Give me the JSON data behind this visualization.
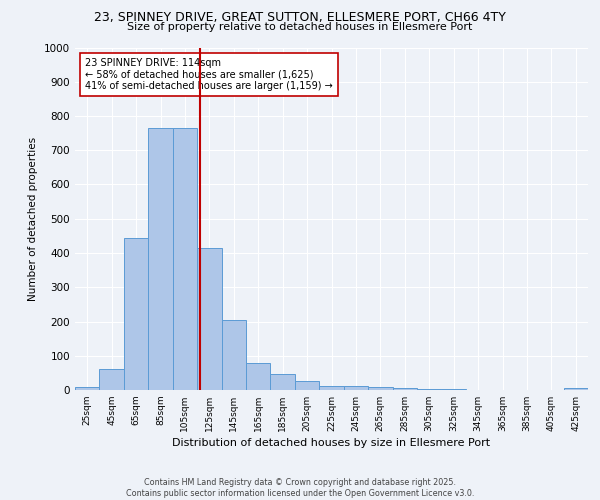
{
  "title_line1": "23, SPINNEY DRIVE, GREAT SUTTON, ELLESMERE PORT, CH66 4TY",
  "title_line2": "Size of property relative to detached houses in Ellesmere Port",
  "xlabel": "Distribution of detached houses by size in Ellesmere Port",
  "ylabel": "Number of detached properties",
  "bin_labels": [
    "25sqm",
    "45sqm",
    "65sqm",
    "85sqm",
    "105sqm",
    "125sqm",
    "145sqm",
    "165sqm",
    "185sqm",
    "205sqm",
    "225sqm",
    "245sqm",
    "265sqm",
    "285sqm",
    "305sqm",
    "325sqm",
    "345sqm",
    "365sqm",
    "385sqm",
    "405sqm",
    "425sqm"
  ],
  "bar_values": [
    8,
    62,
    445,
    765,
    765,
    415,
    205,
    80,
    46,
    27,
    13,
    13,
    8,
    5,
    4,
    2,
    1,
    1,
    0,
    0,
    5
  ],
  "bar_color": "#aec6e8",
  "bar_edge_color": "#5b9bd5",
  "vline_x": 4.6,
  "vline_color": "#c00000",
  "annotation_text": "23 SPINNEY DRIVE: 114sqm\n← 58% of detached houses are smaller (1,625)\n41% of semi-detached houses are larger (1,159) →",
  "annotation_box_color": "#ffffff",
  "annotation_box_edge": "#c00000",
  "ylim": [
    0,
    1000
  ],
  "yticks": [
    0,
    100,
    200,
    300,
    400,
    500,
    600,
    700,
    800,
    900,
    1000
  ],
  "background_color": "#eef2f8",
  "grid_color": "#ffffff",
  "footer_line1": "Contains HM Land Registry data © Crown copyright and database right 2025.",
  "footer_line2": "Contains public sector information licensed under the Open Government Licence v3.0."
}
